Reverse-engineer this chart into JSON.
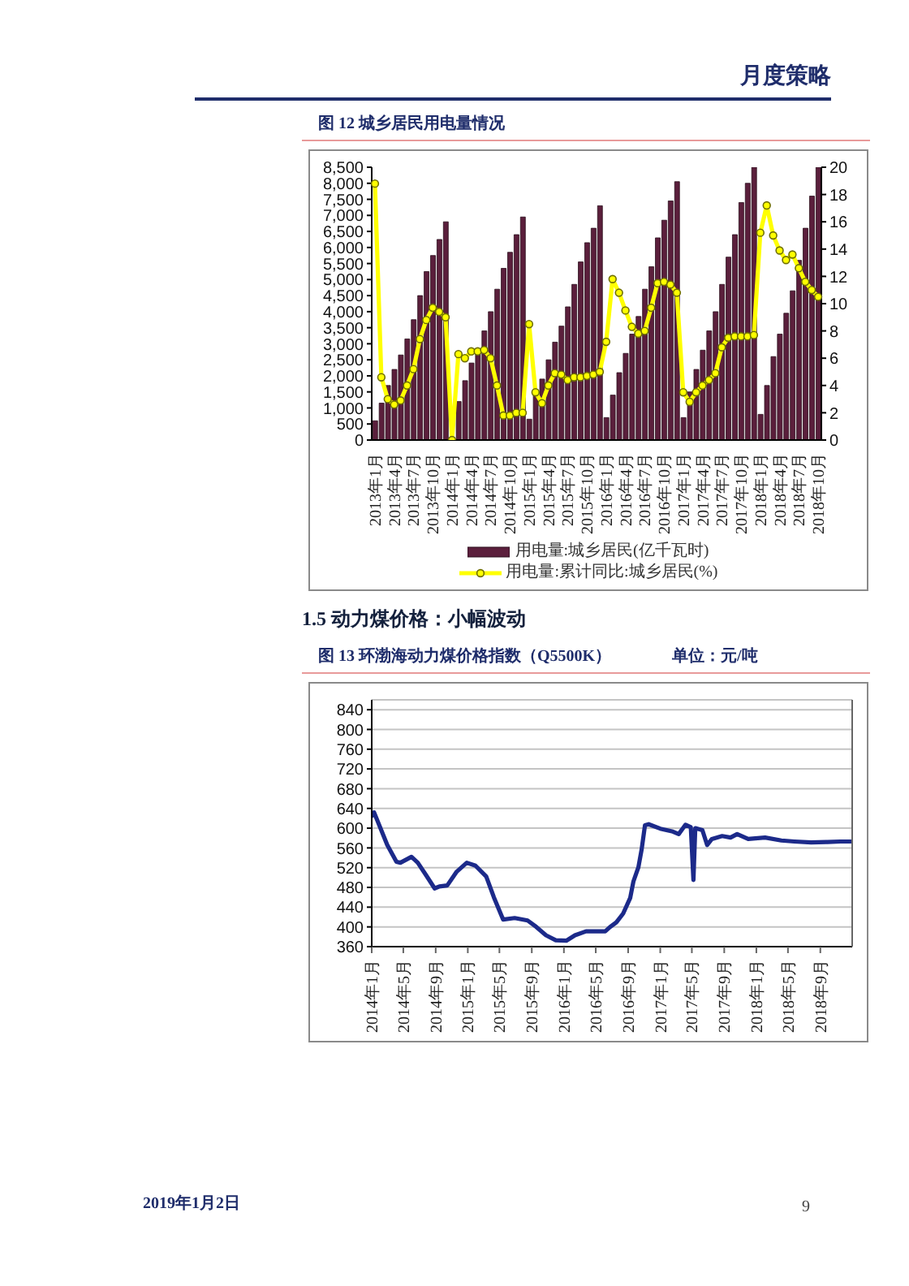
{
  "chart_data": [
    {
      "type": "bar",
      "title": "图 12 城乡居民用电量情况",
      "categories": [
        "2013年1月",
        null,
        null,
        "2013年4月",
        null,
        null,
        "2013年7月",
        null,
        null,
        "2013年10月",
        null,
        null,
        "2014年1月",
        null,
        null,
        "2014年4月",
        null,
        null,
        "2014年7月",
        null,
        null,
        "2014年10月",
        null,
        null,
        "2015年1月",
        null,
        null,
        "2015年4月",
        null,
        null,
        "2015年7月",
        null,
        null,
        "2015年10月",
        null,
        null,
        "2016年1月",
        null,
        null,
        "2016年4月",
        null,
        null,
        "2016年7月",
        null,
        null,
        "2016年10月",
        null,
        null,
        "2017年1月",
        null,
        null,
        "2017年4月",
        null,
        null,
        "2017年7月",
        null,
        null,
        "2017年10月",
        null,
        null,
        "2018年1月",
        null,
        null,
        "2018年4月",
        null,
        null,
        "2018年7月",
        null,
        null,
        "2018年10月"
      ],
      "series": [
        {
          "name": "用电量:城乡居民(亿千瓦时)",
          "type": "bar",
          "color": "#5b1f3c",
          "values": [
            600,
            1150,
            1700,
            2200,
            2650,
            3150,
            3750,
            4500,
            5250,
            5750,
            6250,
            6800,
            null,
            1200,
            1850,
            2400,
            2800,
            3400,
            4000,
            4700,
            5350,
            5850,
            6400,
            6950,
            650,
            1450,
            1900,
            2500,
            3050,
            3550,
            4150,
            4850,
            5550,
            6150,
            6600,
            7300,
            700,
            1400,
            2100,
            2700,
            3300,
            3850,
            4700,
            5400,
            6300,
            6850,
            7450,
            8050,
            700,
            1500,
            2200,
            2800,
            3400,
            4000,
            4850,
            5700,
            6400,
            7400,
            8000,
            8500,
            800,
            1700,
            2600,
            3300,
            3950,
            4650,
            5600,
            6600,
            7600,
            8500
          ]
        },
        {
          "name": "用电量:累计同比:城乡居民(%)",
          "type": "line",
          "axis": "y2",
          "color": "#ffff00",
          "values": [
            18.8,
            4.6,
            3.0,
            2.6,
            2.9,
            4.0,
            5.2,
            7.4,
            8.8,
            9.7,
            9.4,
            9.0,
            0,
            6.3,
            6.0,
            6.5,
            6.5,
            6.6,
            6.0,
            4.0,
            1.8,
            1.8,
            2.0,
            2.0,
            8.5,
            3.5,
            2.7,
            4.0,
            4.9,
            4.8,
            4.4,
            4.6,
            4.6,
            4.7,
            4.8,
            5.0,
            7.2,
            11.8,
            10.8,
            9.5,
            8.3,
            7.8,
            8.0,
            9.7,
            11.5,
            11.6,
            11.4,
            10.8,
            3.5,
            2.8,
            3.5,
            4.0,
            4.4,
            4.9,
            6.8,
            7.5,
            7.6,
            7.6,
            7.6,
            7.7,
            15.2,
            17.2,
            15.0,
            13.9,
            13.2,
            13.6,
            12.6,
            11.6,
            11.0,
            10.5
          ]
        }
      ],
      "ylim": [
        0,
        8500
      ],
      "yticks": [
        0,
        500,
        {
          "value": 1000,
          "label": "1,000"
        },
        {
          "value": 1500,
          "label": "1,500"
        },
        {
          "value": 2000,
          "label": "2,000"
        },
        {
          "value": 2500,
          "label": "2,500"
        },
        {
          "value": 3000,
          "label": "3,000"
        },
        {
          "value": 3500,
          "label": "3,500"
        },
        {
          "value": 4000,
          "label": "4,000"
        },
        {
          "value": 4500,
          "label": "4,500"
        },
        {
          "value": 5000,
          "label": "5,000"
        },
        {
          "value": 5500,
          "label": "5,500"
        },
        {
          "value": 6000,
          "label": "6,000"
        },
        {
          "value": 6500,
          "label": "6,500"
        },
        {
          "value": 7000,
          "label": "7,000"
        },
        {
          "value": 7500,
          "label": "7,500"
        },
        {
          "value": 8000,
          "label": "8,000"
        },
        {
          "value": 8500,
          "label": "8,500"
        }
      ],
      "y2lim": [
        0,
        20
      ],
      "y2ticks": [
        0,
        2,
        4,
        6,
        8,
        10,
        12,
        14,
        16,
        18,
        20
      ],
      "legend": "bottom",
      "marker": "circle",
      "annotations": [
        "月度策略"
      ]
    },
    {
      "type": "line",
      "title": "图 13 环渤海动力煤价格指数（Q5500K）",
      "subtitle": "单位：元/吨",
      "x": [
        "2014-01-03",
        "2014-01-10",
        "2014-03-01",
        "2014-04-05",
        "2014-04-20",
        "2014-06-01",
        "2014-06-25",
        "2014-07-25",
        "2014-08-28",
        "2014-09-15",
        "2014-10-15",
        "2014-11-20",
        "2014-12-28",
        "2015-01-30",
        "2015-03-12",
        "2015-04-10",
        "2015-05-15",
        "2015-06-28",
        "2015-08-16",
        "2015-09-18",
        "2015-10-25",
        "2015-12-01",
        "2016-01-10",
        "2016-02-12",
        "2016-03-25",
        "2016-04-28",
        "2016-06-06",
        "2016-06-25",
        "2016-07-18",
        "2016-08-13",
        "2016-09-09",
        "2016-09-21",
        "2016-10-10",
        "2016-10-22",
        "2016-11-04",
        "2016-11-18",
        "2017-01-01",
        "2017-02-18",
        "2017-03-12",
        "2017-04-07",
        "2017-04-27",
        "2017-05-07",
        "2017-05-14",
        "2017-06-10",
        "2017-06-28",
        "2017-07-16",
        "2017-08-24",
        "2017-09-25",
        "2017-10-20",
        "2017-12-01",
        "2018-02-03",
        "2018-04-06",
        "2018-05-25",
        "2018-07-28",
        "2018-09-28",
        "2018-11-16",
        "2018-12-28"
      ],
      "series": [
        {
          "color": "#1c2a8a",
          "values": [
            625,
            632,
            566,
            532,
            530,
            542,
            530,
            506,
            478,
            482,
            484,
            512,
            530,
            524,
            502,
            460,
            415,
            418,
            413,
            400,
            383,
            373,
            372,
            383,
            391,
            391,
            391,
            400,
            409,
            427,
            459,
            492,
            521,
            556,
            606,
            608,
            599,
            593,
            588,
            607,
            602,
            495,
            600,
            596,
            566,
            578,
            584,
            581,
            588,
            578,
            581,
            575,
            573,
            571,
            572,
            573,
            573
          ]
        }
      ],
      "xlim": [
        "2014-01-01",
        "2018-12-31"
      ],
      "xticks": [
        {
          "value": "2014-01",
          "label": "2014年1月"
        },
        {
          "value": "2014-05",
          "label": "2014年5月"
        },
        {
          "value": "2014-09",
          "label": "2014年9月"
        },
        {
          "value": "2015-01",
          "label": "2015年1月"
        },
        {
          "value": "2015-05",
          "label": "2015年5月"
        },
        {
          "value": "2015-09",
          "label": "2015年9月"
        },
        {
          "value": "2016-01",
          "label": "2016年1月"
        },
        {
          "value": "2016-05",
          "label": "2016年5月"
        },
        {
          "value": "2016-09",
          "label": "2016年9月"
        },
        {
          "value": "2017-01",
          "label": "2017年1月"
        },
        {
          "value": "2017-05",
          "label": "2017年5月"
        },
        {
          "value": "2017-09",
          "label": "2017年9月"
        },
        {
          "value": "2018-01",
          "label": "2018年1月"
        },
        {
          "value": "2018-05",
          "label": "2018年5月"
        },
        {
          "value": "2018-09",
          "label": "2018年9月"
        }
      ],
      "ylim": [
        360,
        860
      ],
      "yticks": [
        360,
        400,
        440,
        480,
        520,
        560,
        600,
        640,
        680,
        720,
        760,
        800,
        840
      ],
      "grid": "y",
      "annotations": [
        "1.5 动力煤价格：小幅波动",
        "2019年1月2日",
        "9"
      ]
    }
  ]
}
